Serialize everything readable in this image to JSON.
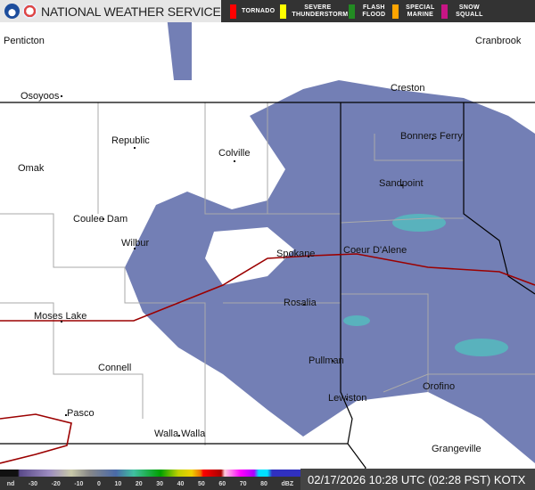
{
  "header": {
    "title": "NATIONAL WEATHER SERVICE",
    "warnings": [
      {
        "label": "TORNADO",
        "color": "#ff0000"
      },
      {
        "label": "SEVERE THUNDERSTORM",
        "color": "#ffff00"
      },
      {
        "label": "FLASH FLOOD",
        "color": "#228b22"
      },
      {
        "label": "SPECIAL MARINE",
        "color": "#ffa500"
      },
      {
        "label": "SNOW SQUALL",
        "color": "#c71585"
      }
    ]
  },
  "cities": [
    "Penticton",
    "Cranbrook",
    "Osoyoos",
    "Creston",
    "Republic",
    "Colville",
    "Bonners Ferry",
    "Omak",
    "Sandpoint",
    "Coulee Dam",
    "Wilbur",
    "Coeur D'Alene",
    "Spokane",
    "Rosalia",
    "Moses Lake",
    "Connell",
    "Pullman",
    "Orofino",
    "Lewiston",
    "Pasco",
    "Walla Walla",
    "Grangeville"
  ],
  "legend": {
    "ticks": [
      "nd",
      "-30",
      "-20",
      "-10",
      "0",
      "10",
      "20",
      "30",
      "40",
      "50",
      "60",
      "70",
      "80",
      "dBZ"
    ]
  },
  "timestamp": "02/17/2026 10:28 UTC (02:28 PST) KOTX",
  "colors": {
    "radar": "#5b68a8",
    "state_border": "#000000",
    "county": "#aaaaaa",
    "highway": "#9b0000"
  }
}
